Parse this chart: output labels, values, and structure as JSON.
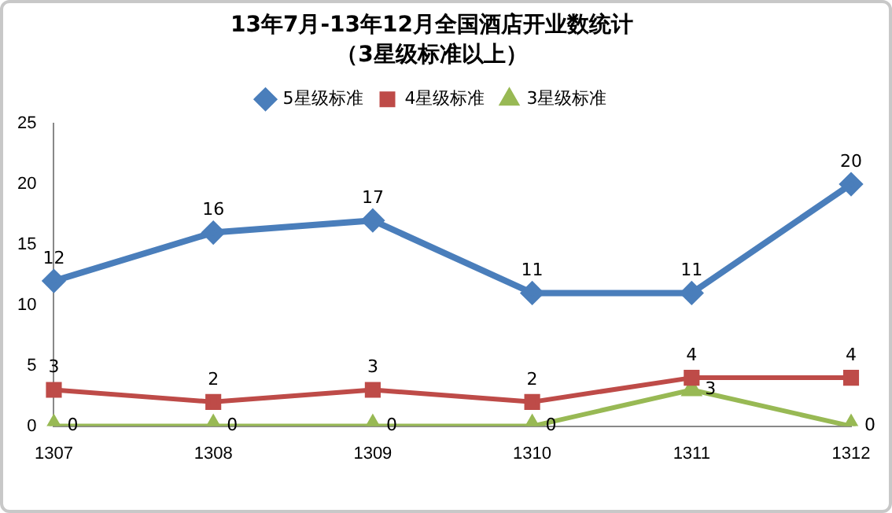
{
  "chart_data": {
    "type": "line",
    "title": "13年7月-13年12月全国酒店开业数统计",
    "subtitle": "（3星级标准以上）",
    "categories": [
      "1307",
      "1308",
      "1309",
      "1310",
      "1311",
      "1312"
    ],
    "series": [
      {
        "name": "5星级标准",
        "color": "#4a7ebb",
        "marker": "diamond",
        "values": [
          12,
          16,
          17,
          11,
          11,
          20
        ]
      },
      {
        "name": "4星级标准",
        "color": "#be4b48",
        "marker": "square",
        "values": [
          3,
          2,
          3,
          2,
          4,
          4
        ]
      },
      {
        "name": "3星级标准",
        "color": "#98b954",
        "marker": "triangle",
        "values": [
          0,
          0,
          0,
          0,
          3,
          0
        ]
      }
    ],
    "ylim": [
      0,
      25
    ],
    "yticks": [
      0,
      5,
      10,
      15,
      20,
      25
    ],
    "grid": false,
    "legend": "top",
    "data_labels": true,
    "line_style": "solid"
  }
}
